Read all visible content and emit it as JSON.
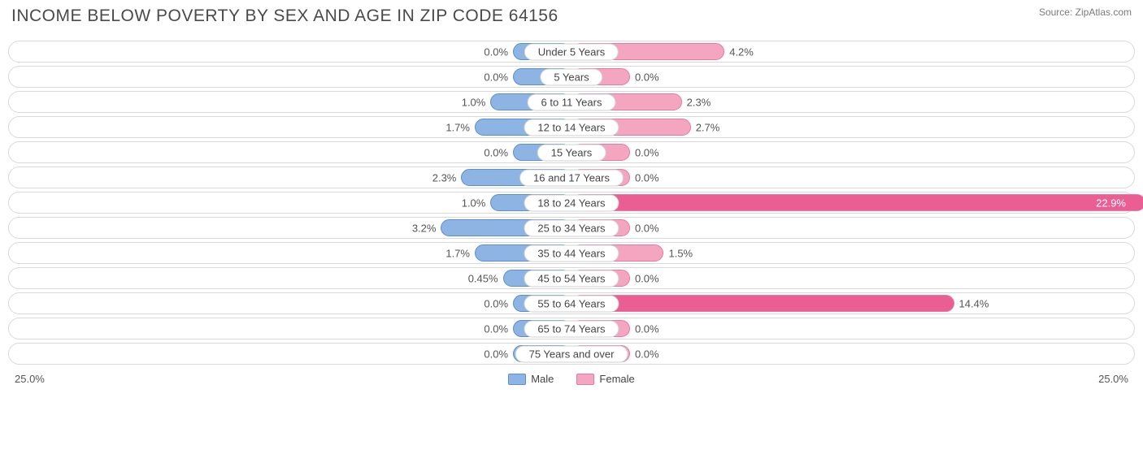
{
  "chart": {
    "title": "INCOME BELOW POVERTY BY SEX AND AGE IN ZIP CODE 64156",
    "source": "Source: ZipAtlas.com",
    "axis_max": 25.0,
    "axis_label_left": "25.0%",
    "axis_label_right": "25.0%",
    "background_color": "#ffffff",
    "track_border_color": "#d9d9d9",
    "text_color": "#4a4a4a",
    "label_color": "#555555",
    "title_fontsize": 21,
    "label_fontsize": 13,
    "min_bar_pct": 5.2,
    "male": {
      "label": "Male",
      "fill": "#8db4e2",
      "border": "#5b8fce",
      "strong_fill": "#6699d8"
    },
    "female": {
      "label": "Female",
      "fill": "#f4a6c0",
      "border": "#e77aa0",
      "strong_fill": "#ea5e93"
    },
    "rows": [
      {
        "category": "Under 5 Years",
        "male": 0.0,
        "male_label": "0.0%",
        "female": 4.2,
        "female_label": "4.2%"
      },
      {
        "category": "5 Years",
        "male": 0.0,
        "male_label": "0.0%",
        "female": 0.0,
        "female_label": "0.0%"
      },
      {
        "category": "6 to 11 Years",
        "male": 1.0,
        "male_label": "1.0%",
        "female": 2.3,
        "female_label": "2.3%"
      },
      {
        "category": "12 to 14 Years",
        "male": 1.7,
        "male_label": "1.7%",
        "female": 2.7,
        "female_label": "2.7%"
      },
      {
        "category": "15 Years",
        "male": 0.0,
        "male_label": "0.0%",
        "female": 0.0,
        "female_label": "0.0%"
      },
      {
        "category": "16 and 17 Years",
        "male": 2.3,
        "male_label": "2.3%",
        "female": 0.0,
        "female_label": "0.0%"
      },
      {
        "category": "18 to 24 Years",
        "male": 1.0,
        "male_label": "1.0%",
        "female": 22.9,
        "female_label": "22.9%"
      },
      {
        "category": "25 to 34 Years",
        "male": 3.2,
        "male_label": "3.2%",
        "female": 0.0,
        "female_label": "0.0%"
      },
      {
        "category": "35 to 44 Years",
        "male": 1.7,
        "male_label": "1.7%",
        "female": 1.5,
        "female_label": "1.5%"
      },
      {
        "category": "45 to 54 Years",
        "male": 0.45,
        "male_label": "0.45%",
        "female": 0.0,
        "female_label": "0.0%"
      },
      {
        "category": "55 to 64 Years",
        "male": 0.0,
        "male_label": "0.0%",
        "female": 14.4,
        "female_label": "14.4%"
      },
      {
        "category": "65 to 74 Years",
        "male": 0.0,
        "male_label": "0.0%",
        "female": 0.0,
        "female_label": "0.0%"
      },
      {
        "category": "75 Years and over",
        "male": 0.0,
        "male_label": "0.0%",
        "female": 0.0,
        "female_label": "0.0%"
      }
    ]
  }
}
